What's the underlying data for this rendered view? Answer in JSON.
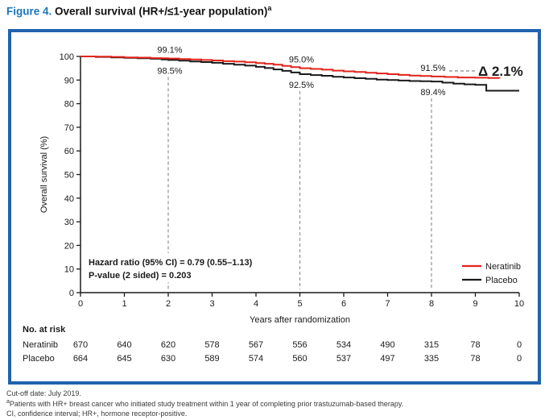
{
  "page": {
    "title_prefix": "Figure 4.",
    "title_text": " Overall survival (HR+/≤1-year population)",
    "title_superscript": "a",
    "footer_lines": [
      {
        "marker": "",
        "text": "Cut-off date: July 2019."
      },
      {
        "marker": "a",
        "text": "Patients with HR+ breast cancer who initiated study treatment within 1 year of completing prior trastuzumab-based therapy."
      },
      {
        "marker": "",
        "text": "CI, confidence interval; HR+, hormone receptor-positive."
      }
    ]
  },
  "colors": {
    "border_blue": "#2063ae",
    "title_blue": "#1b75bc",
    "neratinib_red": "#e2231a",
    "placebo_black": "#1a1a1a",
    "dashed_gray": "#9a9a9a",
    "axis_black": "#1a1a1a"
  },
  "chart_data": {
    "type": "line",
    "subtype": "kaplan-meier-step",
    "title": "Overall survival (HR+/≤1-year population)",
    "xlabel": "Years after randomization",
    "ylabel": "Overall survival (%)",
    "xlim": [
      0,
      10
    ],
    "ylim": [
      0,
      100
    ],
    "xticks": [
      "0",
      "1",
      "2",
      "3",
      "4",
      "5",
      "6",
      "7",
      "8",
      "9",
      "10"
    ],
    "yticks": [
      "0",
      "10",
      "20",
      "30",
      "40",
      "50",
      "60",
      "70",
      "80",
      "90",
      "100"
    ],
    "grid": false,
    "legend_position": "lower right inside",
    "series": [
      {
        "name": "Neratinib",
        "color": "#e2231a",
        "points": [
          [
            0,
            100
          ],
          [
            0.35,
            99.9
          ],
          [
            0.7,
            99.8
          ],
          [
            1.0,
            99.6
          ],
          [
            1.3,
            99.5
          ],
          [
            1.6,
            99.3
          ],
          [
            1.85,
            99.2
          ],
          [
            2.0,
            99.1
          ],
          [
            2.25,
            98.9
          ],
          [
            2.5,
            98.7
          ],
          [
            2.75,
            98.5
          ],
          [
            3.0,
            98.3
          ],
          [
            3.25,
            98.0
          ],
          [
            3.5,
            97.8
          ],
          [
            3.75,
            97.5
          ],
          [
            4.0,
            97.2
          ],
          [
            4.2,
            96.9
          ],
          [
            4.4,
            96.5
          ],
          [
            4.6,
            96.0
          ],
          [
            4.8,
            95.5
          ],
          [
            5.0,
            95.0
          ],
          [
            5.25,
            94.7
          ],
          [
            5.5,
            94.4
          ],
          [
            5.75,
            94.0
          ],
          [
            6.0,
            93.7
          ],
          [
            6.25,
            93.4
          ],
          [
            6.5,
            93.1
          ],
          [
            6.75,
            92.8
          ],
          [
            7.0,
            92.5
          ],
          [
            7.25,
            92.2
          ],
          [
            7.5,
            91.9
          ],
          [
            7.75,
            91.7
          ],
          [
            8.0,
            91.5
          ],
          [
            8.3,
            91.3
          ],
          [
            8.6,
            91.1
          ],
          [
            9.0,
            91.0
          ],
          [
            9.3,
            90.9
          ],
          [
            9.55,
            90.8
          ]
        ]
      },
      {
        "name": "Placebo",
        "color": "#1a1a1a",
        "points": [
          [
            0,
            100
          ],
          [
            0.35,
            99.8
          ],
          [
            0.7,
            99.6
          ],
          [
            1.0,
            99.4
          ],
          [
            1.3,
            99.2
          ],
          [
            1.6,
            99.0
          ],
          [
            1.85,
            98.7
          ],
          [
            2.0,
            98.5
          ],
          [
            2.25,
            98.2
          ],
          [
            2.5,
            97.9
          ],
          [
            2.75,
            97.6
          ],
          [
            3.0,
            97.3
          ],
          [
            3.25,
            96.9
          ],
          [
            3.5,
            96.5
          ],
          [
            3.75,
            96.1
          ],
          [
            4.0,
            95.6
          ],
          [
            4.2,
            95.1
          ],
          [
            4.4,
            94.5
          ],
          [
            4.6,
            93.9
          ],
          [
            4.8,
            93.2
          ],
          [
            5.0,
            92.5
          ],
          [
            5.25,
            92.1
          ],
          [
            5.5,
            91.8
          ],
          [
            5.75,
            91.4
          ],
          [
            6.0,
            91.1
          ],
          [
            6.25,
            90.8
          ],
          [
            6.5,
            90.5
          ],
          [
            6.75,
            90.2
          ],
          [
            7.0,
            90.0
          ],
          [
            7.25,
            89.8
          ],
          [
            7.5,
            89.6
          ],
          [
            7.75,
            89.5
          ],
          [
            8.0,
            89.4
          ],
          [
            8.25,
            88.9
          ],
          [
            8.5,
            88.5
          ],
          [
            8.75,
            88.2
          ],
          [
            9.0,
            88.0
          ],
          [
            9.25,
            85.5
          ],
          [
            10,
            85.5
          ]
        ]
      }
    ],
    "dashed_guide_years": [
      2,
      5,
      8
    ],
    "callouts": [
      {
        "label": "99.1%",
        "year": 2,
        "pct": 99.1,
        "side": "above"
      },
      {
        "label": "98.5%",
        "year": 2,
        "pct": 98.5,
        "side": "below"
      },
      {
        "label": "95.0%",
        "year": 5,
        "pct": 95.0,
        "side": "above"
      },
      {
        "label": "92.5%",
        "year": 5,
        "pct": 92.5,
        "side": "below"
      },
      {
        "label": "91.5%",
        "year": 8,
        "pct": 91.5,
        "side": "above"
      },
      {
        "label": "89.4%",
        "year": 8,
        "pct": 89.4,
        "side": "below"
      }
    ],
    "delta_annotation": {
      "label": "Δ 2.1%",
      "value": "2.1%"
    },
    "stats_lines": [
      "Hazard ratio (95% CI) = 0.79 (0.55–1.13)",
      "P-value (2 sided) = 0.203"
    ],
    "risk_table": {
      "title": "No. at risk",
      "rows": [
        {
          "name": "Neratinib",
          "values": [
            670,
            640,
            620,
            578,
            567,
            556,
            534,
            490,
            315,
            78,
            0
          ]
        },
        {
          "name": "Placebo",
          "values": [
            664,
            645,
            630,
            589,
            574,
            560,
            537,
            497,
            335,
            78,
            0
          ]
        }
      ]
    }
  }
}
